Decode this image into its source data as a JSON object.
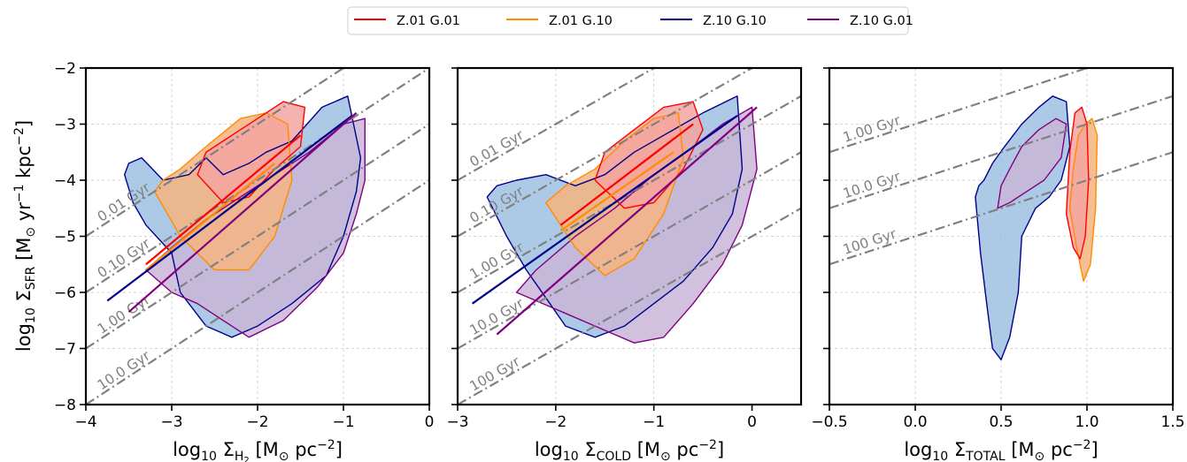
{
  "legend": [
    {
      "label": "Z.01 G.01",
      "color": "#ff0000"
    },
    {
      "label": "Z.01 G.10",
      "color": "#ff8c00"
    },
    {
      "label": "Z.10 G.10",
      "color": "#00008b"
    },
    {
      "label": "Z.10 G.01",
      "color": "#800080"
    }
  ],
  "fill_colors": {
    "Z.01 G.01": "#f4a4a0",
    "Z.01 G.10": "#f5b480",
    "Z.10 G.10": "#9dbfe0",
    "Z.10 G.01": "#c9b6d8"
  },
  "depletion_line_color": "#808080",
  "chart_data": [
    {
      "type": "line",
      "id": "h2",
      "xlabel": {
        "pre": "log",
        "sub1": "10",
        "mid": " Σ",
        "sub2": "H",
        "sub3": "2",
        "post": " [M",
        "sub4": "⊙",
        "post2": " pc",
        "sup": "−2",
        "post3": "]"
      },
      "ylabel": {
        "pre": "log",
        "sub1": "10",
        "mid": " Σ",
        "sub2": "SFR",
        "post": " [M",
        "sub3": "⊙",
        "post2": " yr",
        "sup1": "−1",
        "post3": " kpc",
        "sup2": "−2",
        "post4": "]"
      },
      "xlim": [
        -4,
        0
      ],
      "ylim": [
        -8,
        -2
      ],
      "xticks": [
        -4,
        -3,
        -2,
        -1,
        0
      ],
      "xticklabels": [
        "−4",
        "−3",
        "−2",
        "−1",
        "0"
      ],
      "yticks": [
        -8,
        -7,
        -6,
        -5,
        -4,
        -3,
        -2
      ],
      "yticklabels": [
        "−8",
        "−7",
        "−6",
        "−5",
        "−4",
        "−3",
        "−2"
      ],
      "grid": true,
      "depletion_times": [
        {
          "label": "0.01 Gyr",
          "intercept": -1
        },
        {
          "label": "0.10 Gyr",
          "intercept": -2
        },
        {
          "label": "1.00 Gyr",
          "intercept": -3
        },
        {
          "label": "10.0 Gyr",
          "intercept": -4
        }
      ],
      "fits": [
        {
          "name": "Z.01 G.01",
          "x": [
            -3.3,
            -1.5
          ],
          "y": [
            -5.5,
            -3.2
          ]
        },
        {
          "name": "Z.01 G.10",
          "x": [
            -3.3,
            -1.8
          ],
          "y": [
            -5.6,
            -3.7
          ]
        },
        {
          "name": "Z.10 G.10",
          "x": [
            -3.75,
            -0.9
          ],
          "y": [
            -6.15,
            -2.85
          ]
        },
        {
          "name": "Z.10 G.01",
          "x": [
            -3.5,
            -0.85
          ],
          "y": [
            -6.35,
            -2.8
          ]
        }
      ],
      "regions": [
        {
          "name": "Z.10 G.10",
          "x": [
            -3.55,
            -3.45,
            -3.3,
            -3.0,
            -2.9,
            -2.6,
            -2.3,
            -2.0,
            -1.6,
            -1.2,
            -1.0,
            -0.85,
            -0.8,
            -0.95,
            -1.25,
            -1.6,
            -1.9,
            -2.1,
            -2.4,
            -2.6,
            -2.8,
            -3.1,
            -3.35,
            -3.5
          ],
          "y": [
            -3.9,
            -4.4,
            -4.8,
            -5.3,
            -6.0,
            -6.6,
            -6.8,
            -6.6,
            -6.2,
            -5.7,
            -5.0,
            -4.2,
            -3.6,
            -2.5,
            -2.7,
            -3.3,
            -3.5,
            -3.7,
            -3.9,
            -3.6,
            -3.9,
            -4.0,
            -3.6,
            -3.7
          ]
        },
        {
          "name": "Z.10 G.01",
          "x": [
            -3.3,
            -3.0,
            -2.7,
            -2.4,
            -2.1,
            -1.7,
            -1.3,
            -1.0,
            -0.85,
            -0.75,
            -0.75,
            -1.0,
            -1.4,
            -1.8,
            -2.2,
            -2.6,
            -3.0
          ],
          "y": [
            -5.6,
            -6.0,
            -6.2,
            -6.5,
            -6.8,
            -6.5,
            -5.9,
            -5.3,
            -4.6,
            -4.0,
            -2.9,
            -3.0,
            -3.5,
            -3.9,
            -4.3,
            -4.7,
            -5.2
          ]
        },
        {
          "name": "Z.01 G.10",
          "x": [
            -3.2,
            -2.9,
            -2.5,
            -2.1,
            -1.8,
            -1.6,
            -1.65,
            -1.9,
            -2.2,
            -2.6,
            -2.9,
            -3.1
          ],
          "y": [
            -4.2,
            -5.0,
            -5.6,
            -5.6,
            -5.0,
            -4.0,
            -3.0,
            -2.8,
            -2.9,
            -3.4,
            -3.8,
            -4.0
          ]
        },
        {
          "name": "Z.01 G.01",
          "x": [
            -2.7,
            -2.4,
            -2.1,
            -1.8,
            -1.5,
            -1.45,
            -1.7,
            -2.0,
            -2.3,
            -2.6
          ],
          "y": [
            -3.9,
            -4.4,
            -4.3,
            -3.8,
            -3.4,
            -2.7,
            -2.6,
            -2.9,
            -3.2,
            -3.5
          ]
        }
      ]
    },
    {
      "type": "line",
      "id": "cold",
      "xlabel": {
        "pre": "log",
        "sub1": "10",
        "mid": " Σ",
        "sub2": "COLD",
        "post": " [M",
        "sub3": "⊙",
        "post2": " pc",
        "sup": "−2",
        "post3": "]"
      },
      "xlim": [
        -3,
        0.5
      ],
      "ylim": [
        -8,
        -2
      ],
      "xticks": [
        -3,
        -2,
        -1,
        0
      ],
      "xticklabels": [
        "−3",
        "−2",
        "−1",
        "0"
      ],
      "yticks": [
        -8,
        -7,
        -6,
        -5,
        -4,
        -3,
        -2
      ],
      "grid": true,
      "depletion_times": [
        {
          "label": "0.01 Gyr",
          "intercept": -1
        },
        {
          "label": "0.10 Gyr",
          "intercept": -2
        },
        {
          "label": "1.00 Gyr",
          "intercept": -3
        },
        {
          "label": "10.0 Gyr",
          "intercept": -4
        },
        {
          "label": "100 Gyr",
          "intercept": -5
        }
      ],
      "fits": [
        {
          "name": "Z.01 G.01",
          "x": [
            -1.95,
            -0.6
          ],
          "y": [
            -4.8,
            -3.0
          ]
        },
        {
          "name": "Z.01 G.10",
          "x": [
            -1.95,
            -0.8
          ],
          "y": [
            -4.9,
            -3.5
          ]
        },
        {
          "name": "Z.10 G.10",
          "x": [
            -2.85,
            -0.15
          ],
          "y": [
            -6.2,
            -2.85
          ]
        },
        {
          "name": "Z.10 G.01",
          "x": [
            -2.6,
            0.05
          ],
          "y": [
            -6.75,
            -2.7
          ]
        }
      ],
      "regions": [
        {
          "name": "Z.10 G.10",
          "x": [
            -2.7,
            -2.5,
            -2.3,
            -2.1,
            -1.9,
            -1.6,
            -1.3,
            -1.0,
            -0.7,
            -0.4,
            -0.2,
            -0.1,
            -0.15,
            -0.5,
            -0.9,
            -1.2,
            -1.5,
            -1.8,
            -2.1,
            -2.4,
            -2.6
          ],
          "y": [
            -4.3,
            -5.0,
            -5.6,
            -6.1,
            -6.6,
            -6.8,
            -6.6,
            -6.2,
            -5.8,
            -5.2,
            -4.6,
            -3.8,
            -2.5,
            -2.8,
            -3.2,
            -3.5,
            -3.9,
            -4.1,
            -3.9,
            -4.0,
            -4.1
          ]
        },
        {
          "name": "Z.10 G.01",
          "x": [
            -2.4,
            -2.0,
            -1.6,
            -1.2,
            -0.9,
            -0.6,
            -0.3,
            -0.1,
            0.05,
            0.0,
            -0.3,
            -0.6,
            -1.0,
            -1.4,
            -1.8,
            -2.2
          ],
          "y": [
            -6.0,
            -6.3,
            -6.6,
            -6.9,
            -6.8,
            -6.2,
            -5.5,
            -4.8,
            -3.8,
            -2.7,
            -3.0,
            -3.4,
            -3.9,
            -4.5,
            -5.0,
            -5.6
          ]
        },
        {
          "name": "Z.01 G.10",
          "x": [
            -2.1,
            -1.8,
            -1.5,
            -1.2,
            -0.9,
            -0.7,
            -0.75,
            -1.0,
            -1.3,
            -1.6,
            -1.9
          ],
          "y": [
            -4.4,
            -5.2,
            -5.7,
            -5.4,
            -4.6,
            -3.6,
            -2.8,
            -2.9,
            -3.3,
            -3.8,
            -4.1
          ]
        },
        {
          "name": "Z.01 G.01",
          "x": [
            -1.6,
            -1.3,
            -1.0,
            -0.7,
            -0.5,
            -0.6,
            -0.9,
            -1.2,
            -1.5
          ],
          "y": [
            -4.0,
            -4.5,
            -4.4,
            -3.8,
            -3.1,
            -2.6,
            -2.7,
            -3.1,
            -3.5
          ]
        }
      ]
    },
    {
      "type": "line",
      "id": "total",
      "xlabel": {
        "pre": "log",
        "sub1": "10",
        "mid": " Σ",
        "sub2": "TOTAL",
        "post": " [M",
        "sub3": "⊙",
        "post2": " pc",
        "sup": "−2",
        "post3": "]"
      },
      "xlim": [
        -0.5,
        1.5
      ],
      "ylim": [
        -8,
        -2
      ],
      "xticks": [
        -0.5,
        0.0,
        0.5,
        1.0,
        1.5
      ],
      "xticklabels": [
        "−0.5",
        "0.0",
        "0.5",
        "1.0",
        "1.5"
      ],
      "yticks": [
        -8,
        -7,
        -6,
        -5,
        -4,
        -3,
        -2
      ],
      "grid": true,
      "depletion_times": [
        {
          "label": "1.00 Gyr",
          "intercept": -3
        },
        {
          "label": "10.0 Gyr",
          "intercept": -4
        },
        {
          "label": "100 Gyr",
          "intercept": -5
        }
      ],
      "fits": [],
      "regions": [
        {
          "name": "Z.10 G.10",
          "x": [
            0.35,
            0.38,
            0.42,
            0.45,
            0.5,
            0.55,
            0.6,
            0.62,
            0.7,
            0.78,
            0.85,
            0.9,
            0.88,
            0.8,
            0.72,
            0.62,
            0.52,
            0.45,
            0.4,
            0.37
          ],
          "y": [
            -4.3,
            -5.3,
            -6.3,
            -7.0,
            -7.2,
            -6.8,
            -6.0,
            -5.0,
            -4.5,
            -4.3,
            -4.0,
            -3.4,
            -2.6,
            -2.5,
            -2.7,
            -3.0,
            -3.4,
            -3.7,
            -4.0,
            -4.1
          ]
        },
        {
          "name": "Z.10 G.01",
          "x": [
            0.48,
            0.55,
            0.65,
            0.75,
            0.85,
            0.88,
            0.82,
            0.72,
            0.62,
            0.55,
            0.5
          ],
          "y": [
            -4.5,
            -4.4,
            -4.2,
            -4.0,
            -3.6,
            -3.0,
            -2.9,
            -3.1,
            -3.4,
            -3.8,
            -4.1
          ]
        },
        {
          "name": "Z.01 G.10",
          "x": [
            0.9,
            0.94,
            0.98,
            1.02,
            1.05,
            1.06,
            1.03,
            0.99,
            0.95,
            0.92
          ],
          "y": [
            -4.5,
            -5.2,
            -5.8,
            -5.5,
            -4.5,
            -3.2,
            -2.9,
            -3.0,
            -3.2,
            -3.8
          ]
        },
        {
          "name": "Z.01 G.01",
          "x": [
            0.88,
            0.92,
            0.96,
            0.99,
            1.01,
            1.0,
            0.97,
            0.93,
            0.9
          ],
          "y": [
            -4.6,
            -5.2,
            -5.4,
            -5.0,
            -4.0,
            -3.0,
            -2.7,
            -2.8,
            -3.5
          ]
        }
      ]
    }
  ]
}
